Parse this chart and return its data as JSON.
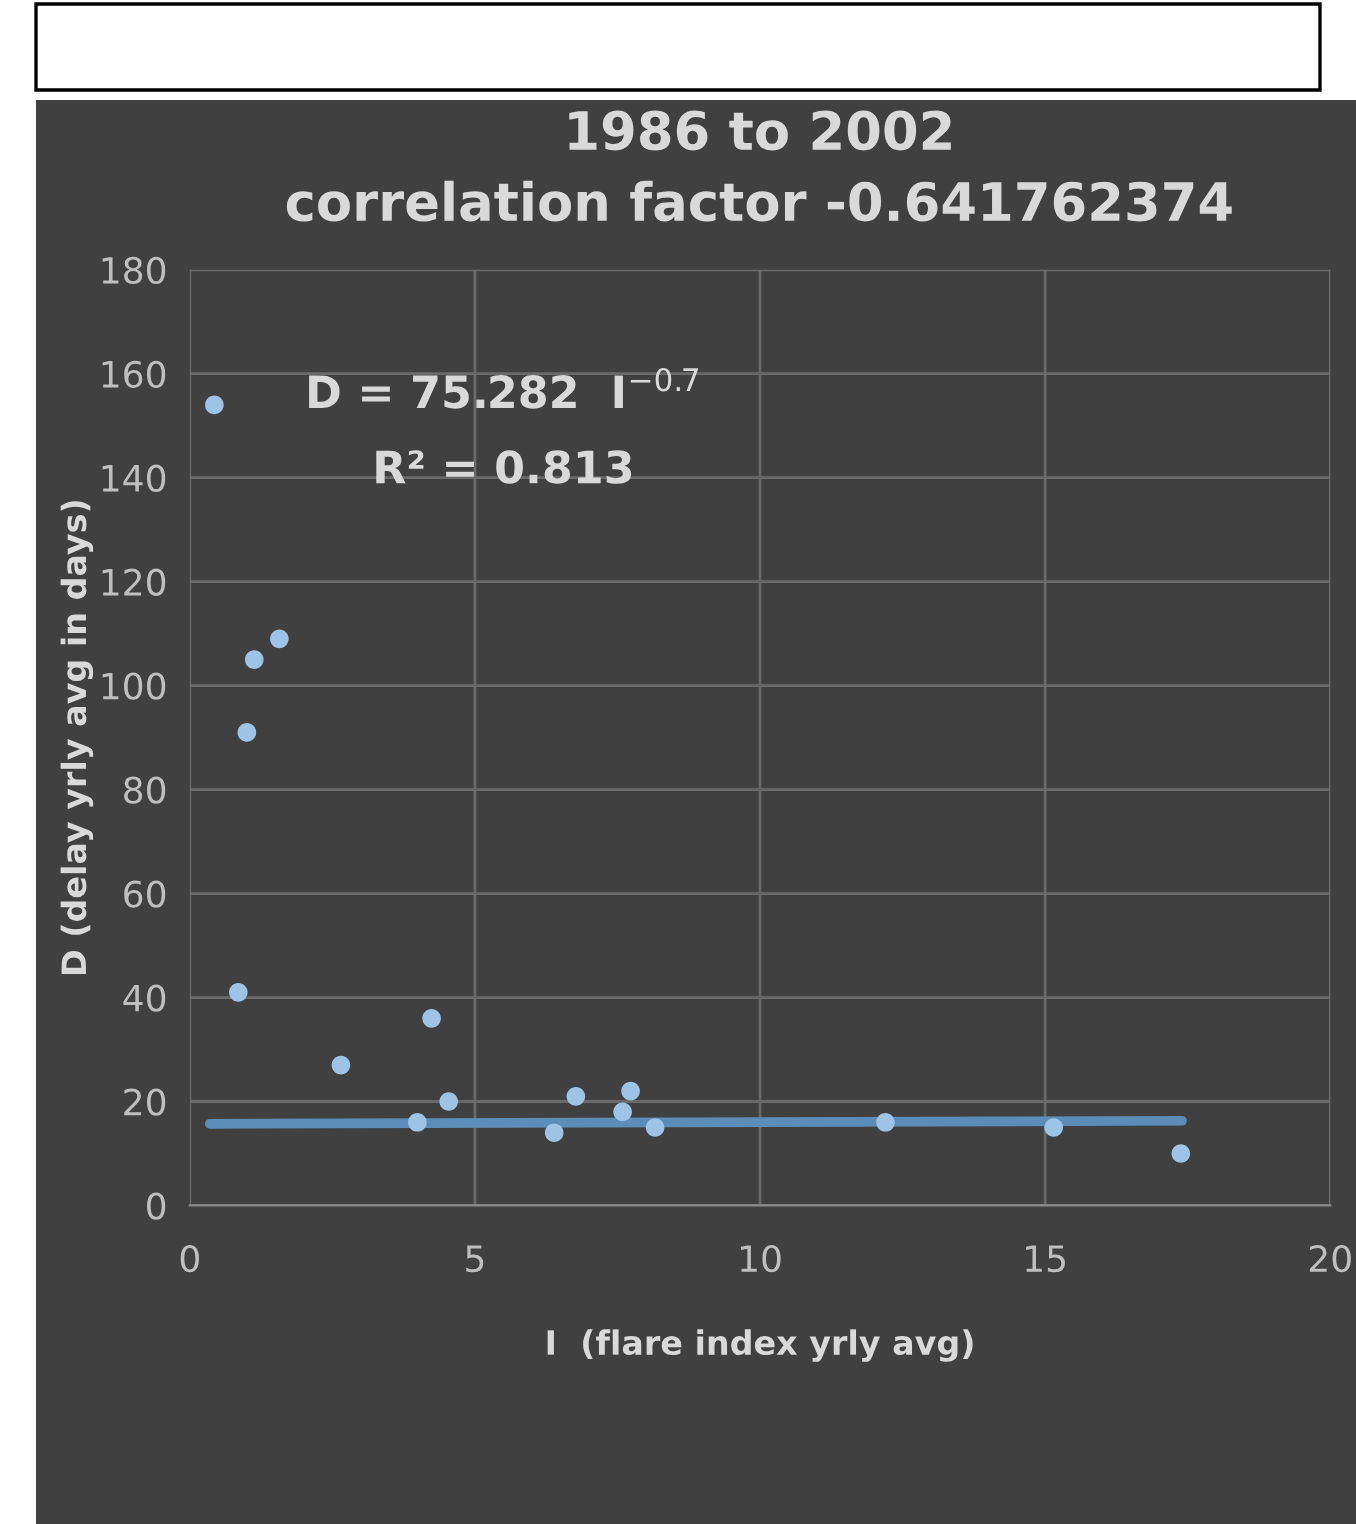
{
  "chart_data": {
    "type": "scatter",
    "title": "1986 to 2002\ncorrelation factor -0.641762374",
    "xlabel": "I  (flare index yrly avg)",
    "ylabel": "D (delay yrly avg in days)",
    "annotations": [
      "D = 75.282  I$^{−0.7}$",
      "R² = 0.813"
    ],
    "series": [
      {
        "marker": "circle",
        "color": "#9dc3e6",
        "x": [
          0.43,
          1.13,
          1.57,
          1.0,
          0.85,
          2.65,
          4.24,
          3.99,
          4.54,
          6.39,
          6.77,
          7.59,
          7.73,
          8.16,
          12.2,
          15.15,
          17.38
        ],
        "values": [
          154,
          105,
          109,
          91,
          41,
          27,
          36,
          16,
          20,
          14,
          21,
          18,
          22,
          15,
          16,
          15,
          10
        ]
      },
      {
        "type": "line",
        "marker": "none",
        "color": "#5b8db8",
        "x": [
          0.35,
          17.4
        ],
        "values": [
          15.7,
          16.3
        ]
      }
    ],
    "xlim": [
      0,
      20
    ],
    "xticks": [
      0,
      5,
      10,
      15,
      20
    ],
    "ylim": [
      0,
      180
    ],
    "yticks": [
      0,
      20,
      40,
      60,
      80,
      100,
      120,
      140,
      160,
      180
    ],
    "grid": true,
    "legend": false
  }
}
